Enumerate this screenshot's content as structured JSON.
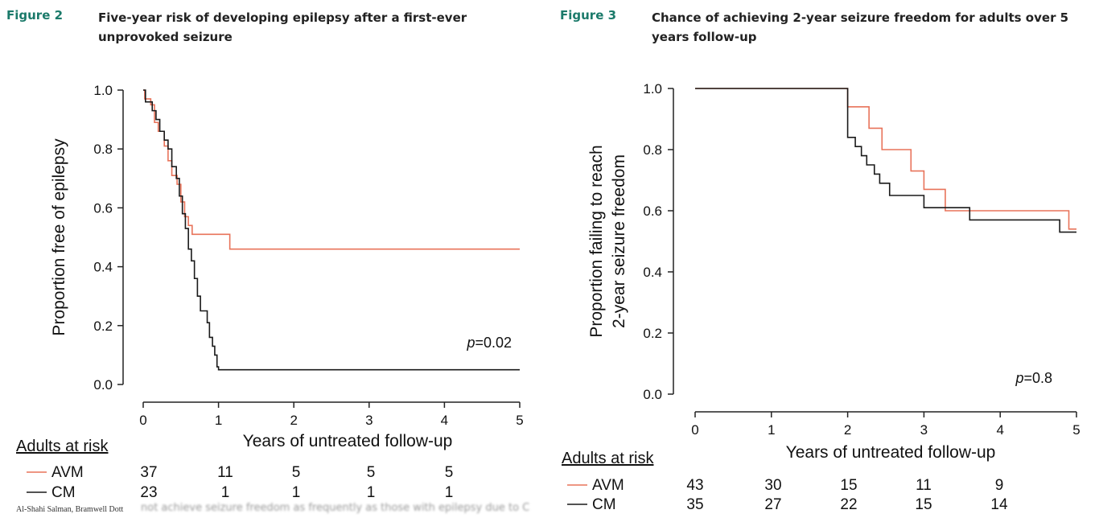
{
  "figures": [
    {
      "label": "Figure 2",
      "title_lines": [
        "Five-year risk of developing epilepsy after a first-ever",
        "unprovoked seizure"
      ]
    },
    {
      "label": "Figure 3",
      "title_lines": [
        "Chance of achieving 2-year seizure freedom for adults over 5",
        "years follow-up"
      ]
    }
  ],
  "colors": {
    "avm": "#e8735a",
    "cm": "#1a1a1a"
  },
  "chart_data": [
    {
      "type": "line",
      "step": true,
      "title": "Five-year risk of developing epilepsy after a first-ever unprovoked seizure",
      "xlabel": "Years of untreated follow-up",
      "ylabel_lines": [
        "Proportion free of epilepsy"
      ],
      "xlim": [
        0,
        5
      ],
      "ylim": [
        0,
        1
      ],
      "xticks": [
        "0",
        "1",
        "2",
        "3",
        "4",
        "5"
      ],
      "yticks": [
        "0.0",
        "0.2",
        "0.4",
        "0.6",
        "0.8",
        "1.0"
      ],
      "annotation": "=0.02",
      "series": [
        {
          "name": "AVM",
          "color": "#e8735a",
          "points": [
            [
              0,
              1.0
            ],
            [
              0.02,
              0.97
            ],
            [
              0.1,
              0.95
            ],
            [
              0.15,
              0.89
            ],
            [
              0.2,
              0.86
            ],
            [
              0.28,
              0.81
            ],
            [
              0.33,
              0.76
            ],
            [
              0.38,
              0.71
            ],
            [
              0.45,
              0.68
            ],
            [
              0.5,
              0.62
            ],
            [
              0.55,
              0.57
            ],
            [
              0.6,
              0.54
            ],
            [
              0.65,
              0.51
            ],
            [
              0.75,
              0.51
            ],
            [
              1.15,
              0.51
            ],
            [
              1.15,
              0.46
            ],
            [
              5.0,
              0.46
            ]
          ]
        },
        {
          "name": "CM",
          "color": "#1a1a1a",
          "points": [
            [
              0,
              1.0
            ],
            [
              0.03,
              0.96
            ],
            [
              0.12,
              0.93
            ],
            [
              0.17,
              0.9
            ],
            [
              0.22,
              0.86
            ],
            [
              0.28,
              0.83
            ],
            [
              0.33,
              0.8
            ],
            [
              0.38,
              0.74
            ],
            [
              0.44,
              0.7
            ],
            [
              0.48,
              0.64
            ],
            [
              0.52,
              0.58
            ],
            [
              0.56,
              0.53
            ],
            [
              0.6,
              0.46
            ],
            [
              0.64,
              0.42
            ],
            [
              0.68,
              0.36
            ],
            [
              0.72,
              0.3
            ],
            [
              0.76,
              0.25
            ],
            [
              0.85,
              0.21
            ],
            [
              0.88,
              0.16
            ],
            [
              0.92,
              0.13
            ],
            [
              0.95,
              0.1
            ],
            [
              0.98,
              0.06
            ],
            [
              1.0,
              0.05
            ],
            [
              5.0,
              0.05
            ]
          ]
        }
      ],
      "risk_table": {
        "title": "Adults at risk",
        "rows": [
          {
            "label": "AVM",
            "values": [
              "37",
              "11",
              "5",
              "5",
              "5"
            ]
          },
          {
            "label": "CM",
            "values": [
              "23",
              "1",
              "1",
              "1",
              "1"
            ]
          }
        ]
      }
    },
    {
      "type": "line",
      "step": true,
      "title": "Chance of achieving 2-year seizure freedom for adults over 5 years follow-up",
      "xlabel": "Years of untreated follow-up",
      "ylabel_lines": [
        "Proportion failing to reach",
        "2-year seizure freedom"
      ],
      "xlim": [
        0,
        5
      ],
      "ylim": [
        0,
        1
      ],
      "xticks": [
        "0",
        "1",
        "2",
        "3",
        "4",
        "5"
      ],
      "yticks": [
        "0.0",
        "0.2",
        "0.4",
        "0.6",
        "0.8",
        "1.0"
      ],
      "annotation": "=0.8",
      "series": [
        {
          "name": "AVM",
          "color": "#e8735a",
          "points": [
            [
              0,
              1.0
            ],
            [
              2.0,
              1.0
            ],
            [
              2.0,
              0.94
            ],
            [
              2.28,
              0.94
            ],
            [
              2.28,
              0.87
            ],
            [
              2.45,
              0.87
            ],
            [
              2.45,
              0.8
            ],
            [
              2.83,
              0.8
            ],
            [
              2.83,
              0.73
            ],
            [
              3.0,
              0.73
            ],
            [
              3.0,
              0.67
            ],
            [
              3.28,
              0.67
            ],
            [
              3.28,
              0.6
            ],
            [
              4.9,
              0.6
            ],
            [
              4.9,
              0.54
            ],
            [
              5.0,
              0.54
            ]
          ]
        },
        {
          "name": "CM",
          "color": "#1a1a1a",
          "points": [
            [
              0,
              1.0
            ],
            [
              2.0,
              1.0
            ],
            [
              2.0,
              0.84
            ],
            [
              2.1,
              0.84
            ],
            [
              2.1,
              0.81
            ],
            [
              2.18,
              0.81
            ],
            [
              2.18,
              0.78
            ],
            [
              2.25,
              0.78
            ],
            [
              2.25,
              0.75
            ],
            [
              2.35,
              0.75
            ],
            [
              2.35,
              0.72
            ],
            [
              2.42,
              0.72
            ],
            [
              2.42,
              0.69
            ],
            [
              2.55,
              0.69
            ],
            [
              2.55,
              0.65
            ],
            [
              3.0,
              0.65
            ],
            [
              3.0,
              0.61
            ],
            [
              3.6,
              0.61
            ],
            [
              3.6,
              0.57
            ],
            [
              4.78,
              0.57
            ],
            [
              4.78,
              0.53
            ],
            [
              5.0,
              0.53
            ]
          ]
        }
      ],
      "risk_table": {
        "title": "Adults at risk",
        "rows": [
          {
            "label": "AVM",
            "values": [
              "43",
              "30",
              "15",
              "11",
              "9"
            ]
          },
          {
            "label": "CM",
            "values": [
              "35",
              "27",
              "22",
              "15",
              "14"
            ]
          }
        ]
      }
    }
  ],
  "footer": {
    "authors": "Al-Shahi Salman, Bramwell Dott",
    "faded_caption": "not achieve seizure freedom as frequently as those with epilepsy due to C"
  }
}
